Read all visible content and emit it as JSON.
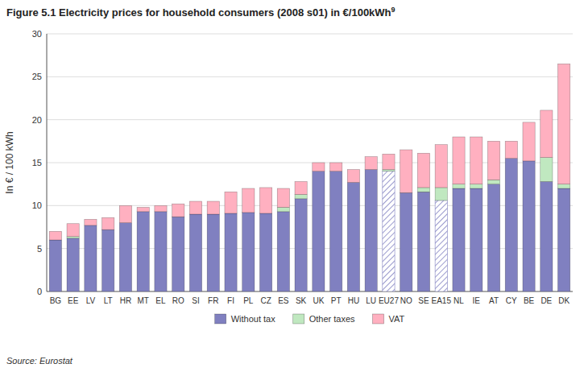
{
  "chart_data": {
    "type": "bar",
    "stacked": true,
    "title": "Figure 5.1 Electricity prices for household consumers (2008 s01) in €/100kWh",
    "annotations": [
      "9",
      "Source: Eurostat"
    ],
    "y_label": "In € / 100 kWh",
    "categories": [
      "BG",
      "EE",
      "LV",
      "LT",
      "HR",
      "MT",
      "EL",
      "RO",
      "SI",
      "FR",
      "FI",
      "PL",
      "CZ",
      "ES",
      "SK",
      "UK",
      "PT",
      "HU",
      "LU",
      "EU27",
      "NO",
      "SE",
      "EA15",
      "NL",
      "IE",
      "AT",
      "CY",
      "BE",
      "DE",
      "DK"
    ],
    "series": [
      {
        "name": "Without tax",
        "color": "#8080C0",
        "colors": [
          "#8080C0",
          "#8080C0",
          "#8080C0",
          "#8080C0",
          "#8080C0",
          "#8080C0",
          "#8080C0",
          "#8080C0",
          "#8080C0",
          "#8080C0",
          "#8080C0",
          "#8080C0",
          "#8080C0",
          "#8080C0",
          "#8080C0",
          "#8080C0",
          "#8080C0",
          "#8080C0",
          "#8080C0",
          "#FFFFFF",
          "#8080C0",
          "#8080C0",
          "#FFFFFF",
          "#8080C0",
          "#8080C0",
          "#8080C0",
          "#8080C0",
          "#8080C0",
          "#8080C0",
          "#8080C0"
        ],
        "values": [
          6.0,
          6.2,
          7.7,
          7.2,
          8.0,
          9.3,
          9.3,
          8.7,
          9.0,
          9.0,
          9.1,
          9.2,
          9.1,
          9.3,
          10.8,
          14.0,
          14.0,
          12.7,
          14.2,
          14.0,
          11.5,
          11.6,
          10.6,
          12.0,
          12.0,
          12.5,
          15.5,
          15.2,
          12.8,
          12.0
        ]
      },
      {
        "name": "Other taxes",
        "color": "#C0E8C0",
        "values": [
          0.0,
          0.2,
          0.0,
          0.0,
          0.0,
          0.0,
          0.0,
          0.0,
          0.0,
          0.0,
          0.0,
          0.0,
          0.0,
          0.5,
          0.5,
          0.0,
          0.0,
          0.0,
          0.0,
          0.2,
          0.0,
          0.5,
          1.5,
          0.5,
          0.5,
          0.5,
          0.0,
          0.0,
          2.8,
          0.5
        ]
      },
      {
        "name": "VAT",
        "color": "#FFB0C0",
        "values": [
          1.0,
          1.5,
          0.7,
          1.4,
          2.0,
          0.5,
          0.7,
          1.5,
          1.5,
          1.5,
          2.5,
          2.8,
          3.0,
          2.2,
          1.5,
          1.0,
          1.0,
          1.5,
          1.5,
          1.8,
          5.0,
          4.0,
          5.0,
          5.5,
          5.5,
          4.5,
          2.0,
          4.5,
          5.5,
          14.0
        ]
      }
    ],
    "ylim": [
      0,
      30
    ],
    "yticks": [
      0,
      5,
      10,
      15,
      20,
      25,
      30
    ],
    "grid": true,
    "legend": "bottom"
  }
}
